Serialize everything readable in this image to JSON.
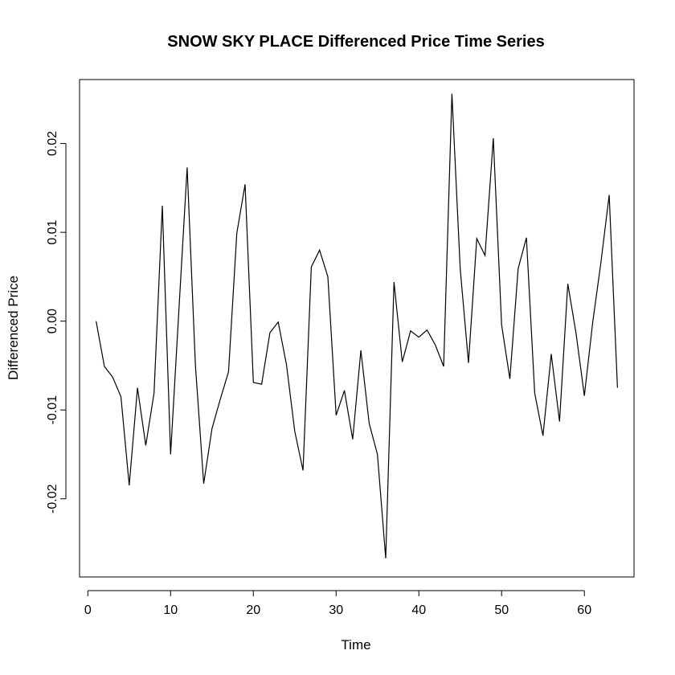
{
  "chart_data": {
    "type": "line",
    "title": "SNOW SKY PLACE Differenced Price Time Series",
    "xlabel": "Time",
    "ylabel": "Differenced Price",
    "xlim": [
      -1,
      66
    ],
    "ylim": [
      -0.0288,
      0.0272
    ],
    "xticks": [
      0,
      10,
      20,
      30,
      40,
      50,
      60
    ],
    "xtick_labels": [
      "0",
      "10",
      "20",
      "30",
      "40",
      "50",
      "60"
    ],
    "yticks": [
      -0.02,
      -0.01,
      0.0,
      0.01,
      0.02
    ],
    "ytick_labels": [
      "-0.02",
      "-0.01",
      "0.00",
      "0.01",
      "0.02"
    ],
    "grid": false,
    "legend": "none",
    "line_color": "#000000",
    "series": [
      {
        "x": [
          1,
          2,
          3,
          4,
          5,
          6,
          7,
          8,
          9,
          10,
          11,
          12,
          13,
          14,
          15,
          16,
          17,
          18,
          19,
          20,
          21,
          22,
          23,
          24,
          25,
          26,
          27,
          28,
          29,
          30,
          31,
          32,
          33,
          34,
          35,
          36,
          37,
          38,
          39,
          40,
          41,
          42,
          43,
          44,
          45,
          46,
          47,
          48,
          49,
          50,
          51,
          52,
          53,
          54,
          55,
          56,
          57,
          58,
          59,
          60,
          61,
          62,
          63,
          64
        ],
        "values": [
          0.0,
          -0.0051,
          -0.0063,
          -0.0085,
          -0.0185,
          -0.0075,
          -0.014,
          -0.0081,
          0.013,
          -0.015,
          0.0012,
          0.0173,
          -0.005,
          -0.0183,
          -0.0121,
          -0.0088,
          -0.0057,
          0.0099,
          0.0154,
          -0.0069,
          -0.0071,
          -0.0013,
          -0.0001,
          -0.0049,
          -0.0124,
          -0.0168,
          0.0061,
          0.008,
          0.005,
          -0.0106,
          -0.0078,
          -0.0133,
          -0.0033,
          -0.0115,
          -0.015,
          -0.0267,
          0.0044,
          -0.0046,
          -0.0011,
          -0.0018,
          -0.001,
          -0.0027,
          -0.0051,
          0.0256,
          0.0059,
          -0.0047,
          0.0093,
          0.0074,
          0.0206,
          -0.0004,
          -0.0065,
          0.0059,
          0.0094,
          -0.0081,
          -0.0129,
          -0.0037,
          -0.0113,
          0.0042,
          -0.0014,
          -0.0084,
          -0.0002,
          0.0066,
          0.0142,
          -0.0075
        ]
      }
    ]
  }
}
